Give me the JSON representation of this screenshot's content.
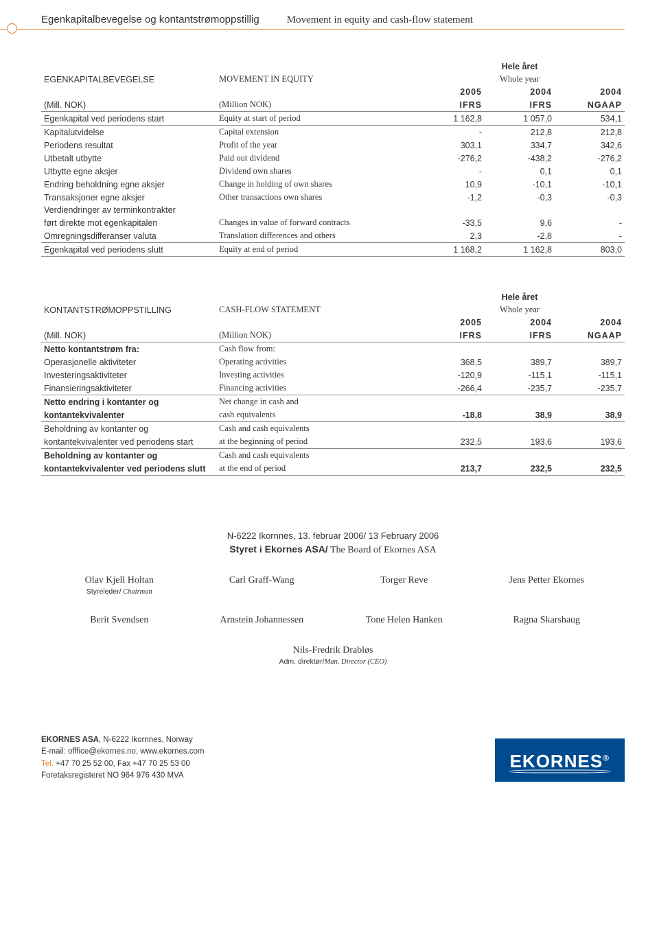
{
  "header": {
    "title_no": "Egenkapitalbevegelse og kontantstrømoppstillig",
    "title_en": "Movement in equity and cash-flow statement"
  },
  "equity": {
    "section_no": "EGENKAPITALBEVEGELSE",
    "section_en": "MOVEMENT IN EQUITY",
    "period_no": "Hele året",
    "period_en": "Whole year",
    "years": [
      "2005",
      "2004",
      "2004"
    ],
    "unit_no": "(Mill. NOK)",
    "unit_en": "(Million NOK)",
    "standards": [
      "IFRS",
      "IFRS",
      "NGAAP"
    ],
    "rows": [
      {
        "no": "Egenkapital ved periodens start",
        "en": "Equity at start of period",
        "v": [
          "1 162,8",
          "1 057,0",
          "534,1"
        ],
        "u": true
      },
      {
        "no": "Kapitalutvidelse",
        "en": "Capital extension",
        "v": [
          "-",
          "212,8",
          "212,8"
        ]
      },
      {
        "no": "Periodens resultat",
        "en": "Profit of the year",
        "v": [
          "303,1",
          "334,7",
          "342,6"
        ]
      },
      {
        "no": "Utbetalt utbytte",
        "en": "Paid out dividend",
        "v": [
          "-276,2",
          "-438,2",
          "-276,2"
        ]
      },
      {
        "no": "Utbytte egne aksjer",
        "en": "Dividend own shares",
        "v": [
          "-",
          "0,1",
          "0,1"
        ]
      },
      {
        "no": "Endring beholdning egne aksjer",
        "en": "Change in holding of own shares",
        "v": [
          "10,9",
          "-10,1",
          "-10,1"
        ]
      },
      {
        "no": "Transaksjoner egne aksjer",
        "en": "Other transactions own shares",
        "v": [
          "-1,2",
          "-0,3",
          "-0,3"
        ]
      },
      {
        "no": "Verdiendringer av terminkontrakter",
        "en": "",
        "v": [
          "",
          "",
          ""
        ]
      },
      {
        "no": "ført direkte mot egenkapitalen",
        "en": "Changes in value of forward contracts",
        "v": [
          "-33,5",
          "9,6",
          "-"
        ]
      },
      {
        "no": "Omregningsdifferanser valuta",
        "en": "Translation differences and others",
        "v": [
          "2,3",
          "-2,8",
          "-"
        ],
        "u": true
      },
      {
        "no": "Egenkapital ved periodens slutt",
        "en": "Equity at end of period",
        "v": [
          "1 168,2",
          "1 162,8",
          "803,0"
        ],
        "u": true
      }
    ]
  },
  "cashflow": {
    "section_no": "KONTANTSTRØMOPPSTILLING",
    "section_en": "CASH-FLOW STATEMENT",
    "period_no": "Hele året",
    "period_en": "Whole year",
    "years": [
      "2005",
      "2004",
      "2004"
    ],
    "unit_no": "(Mill. NOK)",
    "unit_en": "(Million NOK)",
    "standards": [
      "IFRS",
      "IFRS",
      "NGAAP"
    ],
    "rows": [
      {
        "no": "Netto kontantstrøm fra:",
        "en": "Cash flow from:",
        "v": [
          "",
          "",
          ""
        ],
        "bold": true
      },
      {
        "no": "Operasjonelle aktiviteter",
        "en": "Operating activities",
        "v": [
          "368,5",
          "389,7",
          "389,7"
        ]
      },
      {
        "no": "Investeringsaktiviteter",
        "en": "Investing activities",
        "v": [
          "-120,9",
          "-115,1",
          "-115,1"
        ]
      },
      {
        "no": "Finansieringsaktiviteter",
        "en": "Financing activities",
        "v": [
          "-266,4",
          "-235,7",
          "-235,7"
        ],
        "u": true
      },
      {
        "no": "Netto endring i kontanter og",
        "en": "Net change in cash and",
        "v": [
          "",
          "",
          ""
        ],
        "bold": true
      },
      {
        "no": "kontantekvivalenter",
        "en": "cash equivalents",
        "v": [
          "-18,8",
          "38,9",
          "38,9"
        ],
        "bold": true,
        "u": true
      },
      {
        "no": "Beholdning av kontanter og",
        "en": "Cash and cash equivalents",
        "v": [
          "",
          "",
          ""
        ]
      },
      {
        "no": "kontantekvivalenter ved periodens start",
        "en": "at the beginning of period",
        "v": [
          "232,5",
          "193,6",
          "193,6"
        ],
        "u": true
      },
      {
        "no": "Beholdning av kontanter og",
        "en": "Cash and cash equivalents",
        "v": [
          "",
          "",
          ""
        ],
        "bold": true
      },
      {
        "no": "kontantekvivalenter ved periodens slutt",
        "en": "at the end of period",
        "v": [
          "213,7",
          "232,5",
          "232,5"
        ],
        "bold": true,
        "u": true
      }
    ]
  },
  "signatures": {
    "location": "N-6222 Ikornnes, 13. februar 2006/ 13 February 2006",
    "board_no": "Styret i Ekornes ASA/",
    "board_en": " The Board of Ekornes ASA",
    "row1": [
      {
        "name": "Olav Kjell Holtan",
        "role_no": "Styreleder/",
        "role_en": " Chairman"
      },
      {
        "name": "Carl Graff-Wang"
      },
      {
        "name": "Torger Reve"
      },
      {
        "name": "Jens Petter Ekornes"
      }
    ],
    "row2": [
      {
        "name": "Berit Svendsen"
      },
      {
        "name": "Arnstein Johannessen"
      },
      {
        "name": "Tone Helen Hanken"
      },
      {
        "name": "Ragna Skarshaug"
      }
    ],
    "ceo": {
      "name": "Nils-Fredrik Drabløs",
      "role_no": "Adm. direktør/",
      "role_en": "Man. Director (CEO)"
    }
  },
  "footer": {
    "company": "EKORNES ASA",
    "addr": ", N-6222 Ikornnes, Norway",
    "email": "E-mail: offfice@ekornes.no, www.ekornes.com",
    "tel_label": "Tel.",
    "tel": " +47 70 25 52 00, Fax  +47 70 25 53 00",
    "reg": "Foretaksregisteret NO 964 976 430 MVA",
    "logo": "EKORNES"
  }
}
